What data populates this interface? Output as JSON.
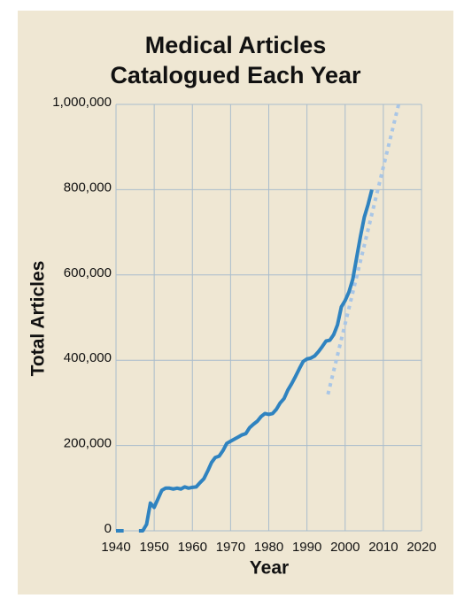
{
  "chart_data": {
    "type": "line",
    "title": "Medical Articles Catalogued Each Year",
    "x_label": "Year",
    "y_label": "Total Articles",
    "x": [
      1940,
      1941,
      1942,
      1943,
      1946,
      1947,
      1948,
      1949,
      1950,
      1951,
      1952,
      1953,
      1954,
      1955,
      1956,
      1957,
      1958,
      1959,
      1960,
      1961,
      1962,
      1963,
      1964,
      1965,
      1966,
      1967,
      1968,
      1969,
      1970,
      1971,
      1972,
      1973,
      1974,
      1975,
      1976,
      1977,
      1978,
      1979,
      1980,
      1981,
      1982,
      1983,
      1984,
      1985,
      1986,
      1987,
      1988,
      1989,
      1990,
      1991,
      1992,
      1993,
      1994,
      1995,
      1996,
      1997,
      1998,
      1999,
      2000,
      2001,
      2002,
      2003,
      2004,
      2005,
      2006,
      2007
    ],
    "series": [
      {
        "color": "#2f83c0",
        "values": [
          0,
          0,
          0,
          null,
          0,
          0,
          15000,
          65000,
          55000,
          75000,
          95000,
          100000,
          100000,
          98000,
          100000,
          98000,
          103000,
          100000,
          102000,
          103000,
          113000,
          122000,
          140000,
          160000,
          172000,
          175000,
          188000,
          205000,
          210000,
          215000,
          220000,
          225000,
          228000,
          242000,
          250000,
          257000,
          268000,
          275000,
          273000,
          275000,
          285000,
          300000,
          310000,
          330000,
          345000,
          362000,
          380000,
          397000,
          403000,
          405000,
          410000,
          420000,
          432000,
          445000,
          447000,
          460000,
          483000,
          525000,
          540000,
          560000,
          590000,
          640000,
          690000,
          735000,
          765000,
          800000
        ]
      }
    ],
    "trend": {
      "color": "#a9c6e6",
      "x": [
        1995.5,
        2014
      ],
      "values": [
        320000,
        1000000
      ]
    },
    "xlim": [
      1940,
      2020
    ],
    "xticks": [
      1940,
      1950,
      1960,
      1970,
      1980,
      1990,
      2000,
      2010,
      2020
    ],
    "ylim": [
      0,
      1000000
    ],
    "yticks": [
      0,
      {
        "value": 200000,
        "label": "200,000"
      },
      {
        "value": 400000,
        "label": "400,000"
      },
      {
        "value": 600000,
        "label": "600,000"
      },
      {
        "value": 800000,
        "label": "800,000"
      },
      {
        "value": 1000000,
        "label": "1,000,000"
      }
    ],
    "grid": true
  }
}
